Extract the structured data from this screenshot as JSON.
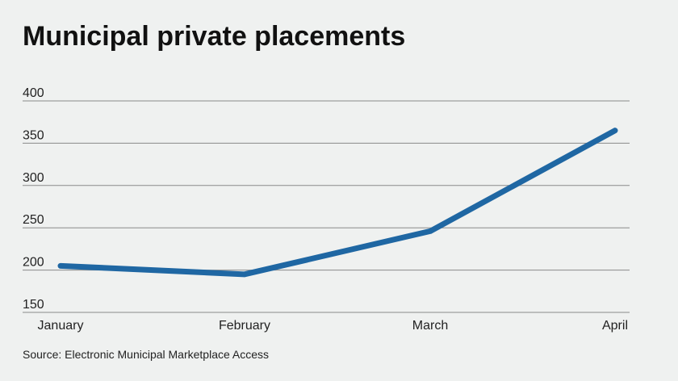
{
  "chart_data": {
    "type": "line",
    "title": "Municipal private placements",
    "categories": [
      "January",
      "February",
      "March",
      "April"
    ],
    "values": [
      205,
      195,
      246,
      365
    ],
    "color": "#1f67a3",
    "ylim": [
      150,
      400
    ],
    "yticks": [
      150,
      200,
      250,
      300,
      350,
      400
    ],
    "grid": true,
    "source": "Source: Electronic Municipal Marketplace Access"
  }
}
